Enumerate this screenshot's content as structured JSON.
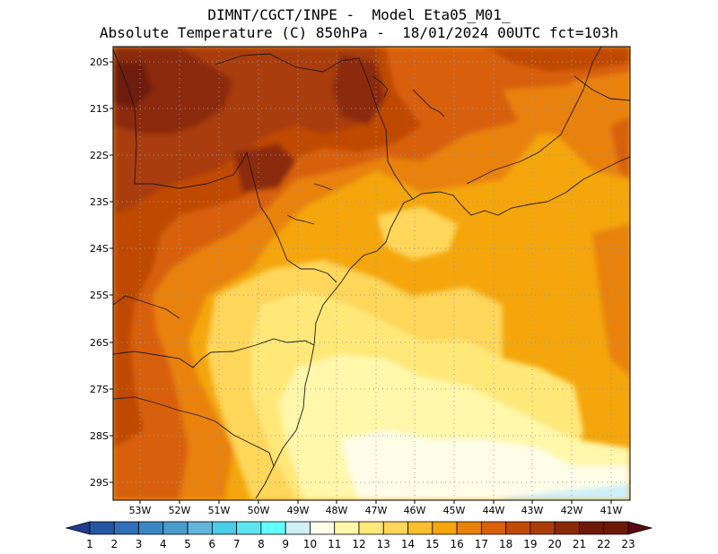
{
  "header": {
    "line1": "DIMNT/CGCT/INPE -  Model Eta05_M01_",
    "line2": "Absolute Temperature (C) 850hPa -  18/01/2024 00UTC fct=103h"
  },
  "map": {
    "lat_labels": [
      "20S",
      "21S",
      "22S",
      "23S",
      "24S",
      "25S",
      "26S",
      "27S",
      "28S",
      "29S"
    ],
    "lon_labels": [
      "53W",
      "52W",
      "51W",
      "50W",
      "49W",
      "48W",
      "47W",
      "46W",
      "45W",
      "44W",
      "43W",
      "42W",
      "41W"
    ],
    "lat_range": [
      -29.4,
      -19.7
    ],
    "lon_range": [
      -53.6,
      -40.6
    ],
    "grid": true,
    "grid_style": "dotted"
  },
  "colorbar": {
    "values": [
      "1",
      "2",
      "3",
      "4",
      "5",
      "6",
      "7",
      "8",
      "9",
      "10",
      "11",
      "12",
      "13",
      "14",
      "15",
      "16",
      "17",
      "18",
      "19",
      "20",
      "21",
      "22",
      "23"
    ],
    "colors": [
      "#203c8e",
      "#2656a3",
      "#2e6eb4",
      "#3a86c2",
      "#4c9ccd",
      "#63b6db",
      "#49cde5",
      "#5ee6f0",
      "#62ffff",
      "#cfeff7",
      "#fffde8",
      "#fff7aa",
      "#ffe878",
      "#fdd65a",
      "#f8be2e",
      "#f4a60c",
      "#e8820a",
      "#d86008",
      "#c04a06",
      "#a93c07",
      "#8c2a08",
      "#6e1a08",
      "#5a0a10"
    ]
  }
}
